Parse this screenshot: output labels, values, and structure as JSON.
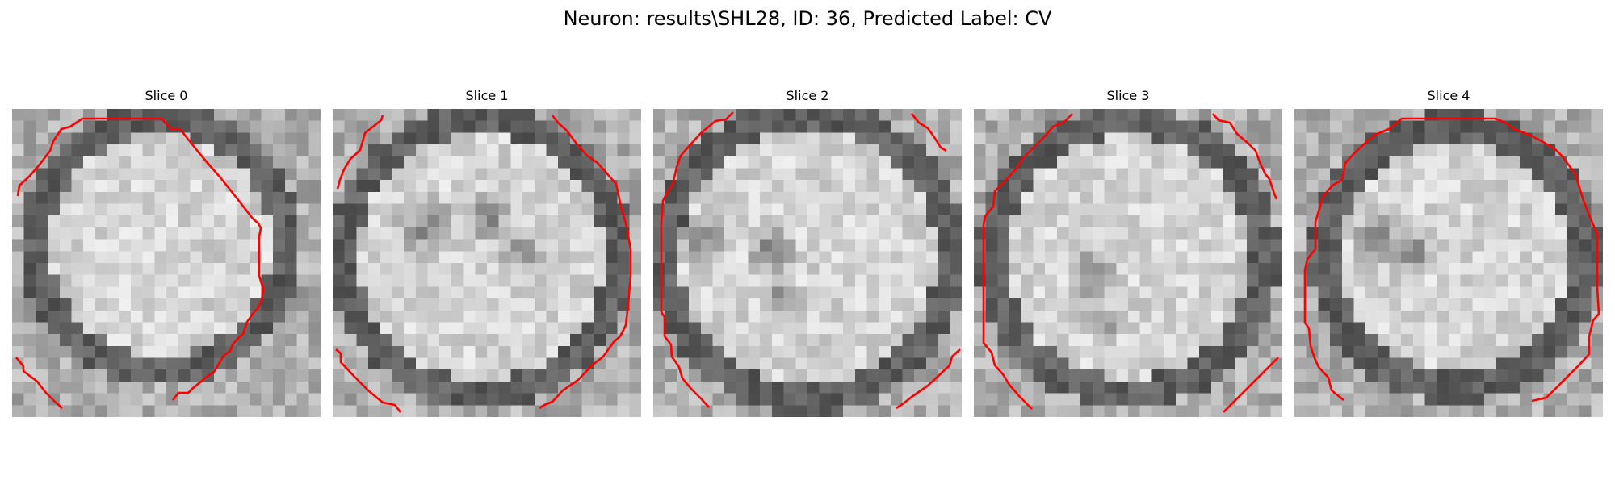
{
  "figure": {
    "title": "Neuron: results\\SHL28, ID: 36, Predicted Label: CV"
  },
  "colors": {
    "contour": "#ff0000",
    "colormap": "gray"
  },
  "slices": [
    {
      "title": "Slice 0"
    },
    {
      "title": "Slice 1"
    },
    {
      "title": "Slice 2"
    },
    {
      "title": "Slice 3"
    },
    {
      "title": "Slice 4"
    }
  ]
}
